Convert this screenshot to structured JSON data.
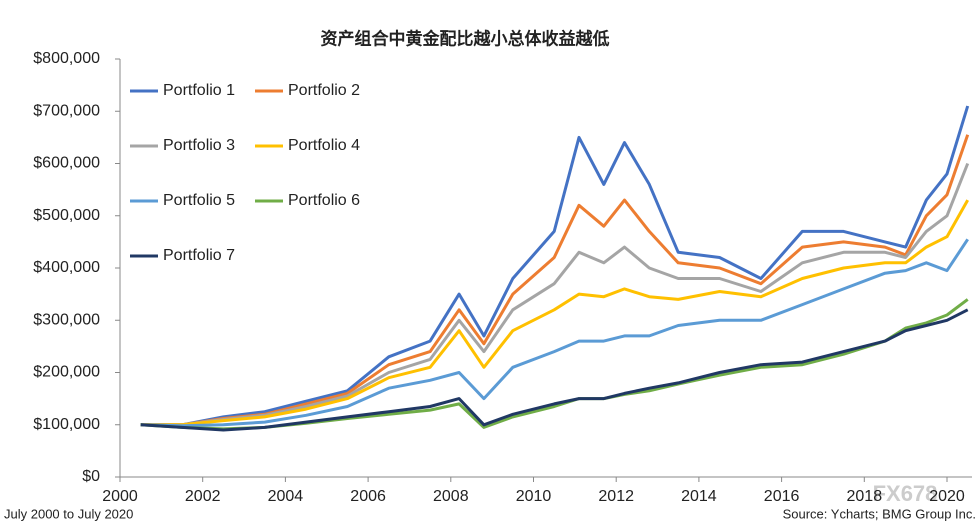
{
  "chart_data": {
    "type": "line",
    "title": "资产组合中黄金配比越小总体收益越低",
    "note": "July 2000 to July 2020",
    "source": "Source: Ycharts; BMG Group Inc.",
    "watermark": "FX678",
    "x": [
      2000.5,
      2001.5,
      2002.5,
      2003.5,
      2004.5,
      2005.5,
      2006.5,
      2007.5,
      2008.2,
      2008.8,
      2009.5,
      2010.5,
      2011.1,
      2011.7,
      2012.2,
      2012.8,
      2013.5,
      2014.5,
      2015.5,
      2016.5,
      2017.5,
      2018.5,
      2019.0,
      2019.5,
      2020.0,
      2020.5
    ],
    "series": [
      {
        "name": "Portfolio 1",
        "color": "#4472c4",
        "values": [
          100000,
          100000,
          115000,
          125000,
          145000,
          165000,
          230000,
          260000,
          350000,
          270000,
          380000,
          470000,
          650000,
          560000,
          640000,
          560000,
          430000,
          420000,
          380000,
          470000,
          470000,
          450000,
          440000,
          530000,
          580000,
          710000
        ]
      },
      {
        "name": "Portfolio 2",
        "color": "#ed7d31",
        "values": [
          100000,
          100000,
          112000,
          120000,
          140000,
          160000,
          215000,
          240000,
          320000,
          255000,
          350000,
          420000,
          520000,
          480000,
          530000,
          470000,
          410000,
          400000,
          370000,
          440000,
          450000,
          440000,
          425000,
          500000,
          540000,
          655000
        ]
      },
      {
        "name": "Portfolio 3",
        "color": "#a5a5a5",
        "values": [
          100000,
          100000,
          110000,
          118000,
          135000,
          155000,
          200000,
          225000,
          300000,
          240000,
          320000,
          370000,
          430000,
          410000,
          440000,
          400000,
          380000,
          380000,
          355000,
          410000,
          430000,
          430000,
          420000,
          470000,
          500000,
          600000
        ]
      },
      {
        "name": "Portfolio 4",
        "color": "#ffc000",
        "values": [
          100000,
          100000,
          108000,
          115000,
          130000,
          150000,
          190000,
          210000,
          280000,
          210000,
          280000,
          320000,
          350000,
          345000,
          360000,
          345000,
          340000,
          355000,
          345000,
          380000,
          400000,
          410000,
          410000,
          440000,
          460000,
          530000
        ]
      },
      {
        "name": "Portfolio 5",
        "color": "#5b9bd5",
        "values": [
          100000,
          98000,
          100000,
          105000,
          118000,
          135000,
          170000,
          185000,
          200000,
          150000,
          210000,
          240000,
          260000,
          260000,
          270000,
          270000,
          290000,
          300000,
          300000,
          330000,
          360000,
          390000,
          395000,
          410000,
          395000,
          455000
        ]
      },
      {
        "name": "Portfolio 6",
        "color": "#70ad47",
        "values": [
          100000,
          95000,
          92000,
          95000,
          103000,
          112000,
          120000,
          128000,
          140000,
          95000,
          115000,
          135000,
          150000,
          150000,
          158000,
          165000,
          178000,
          195000,
          210000,
          215000,
          235000,
          260000,
          285000,
          295000,
          310000,
          340000
        ]
      },
      {
        "name": "Portfolio 7",
        "color": "#203864",
        "values": [
          100000,
          95000,
          90000,
          95000,
          105000,
          115000,
          125000,
          135000,
          150000,
          100000,
          120000,
          140000,
          150000,
          150000,
          160000,
          170000,
          180000,
          200000,
          215000,
          220000,
          240000,
          260000,
          280000,
          290000,
          300000,
          320000
        ]
      }
    ],
    "xlim": [
      2000,
      2020
    ],
    "xticks": [
      2000,
      2002,
      2004,
      2006,
      2008,
      2010,
      2012,
      2014,
      2016,
      2018,
      2020
    ],
    "ylim": [
      0,
      800000
    ],
    "yticks": [
      {
        "value": 0,
        "label": "$0"
      },
      {
        "value": 100000,
        "label": "$100,000"
      },
      {
        "value": 200000,
        "label": "$200,000"
      },
      {
        "value": 300000,
        "label": "$300,000"
      },
      {
        "value": 400000,
        "label": "$400,000"
      },
      {
        "value": 500000,
        "label": "$500,000"
      },
      {
        "value": 600000,
        "label": "$600,000"
      },
      {
        "value": 700000,
        "label": "$700,000"
      },
      {
        "value": 800000,
        "label": "$800,000"
      }
    ],
    "legend": "top-left"
  }
}
